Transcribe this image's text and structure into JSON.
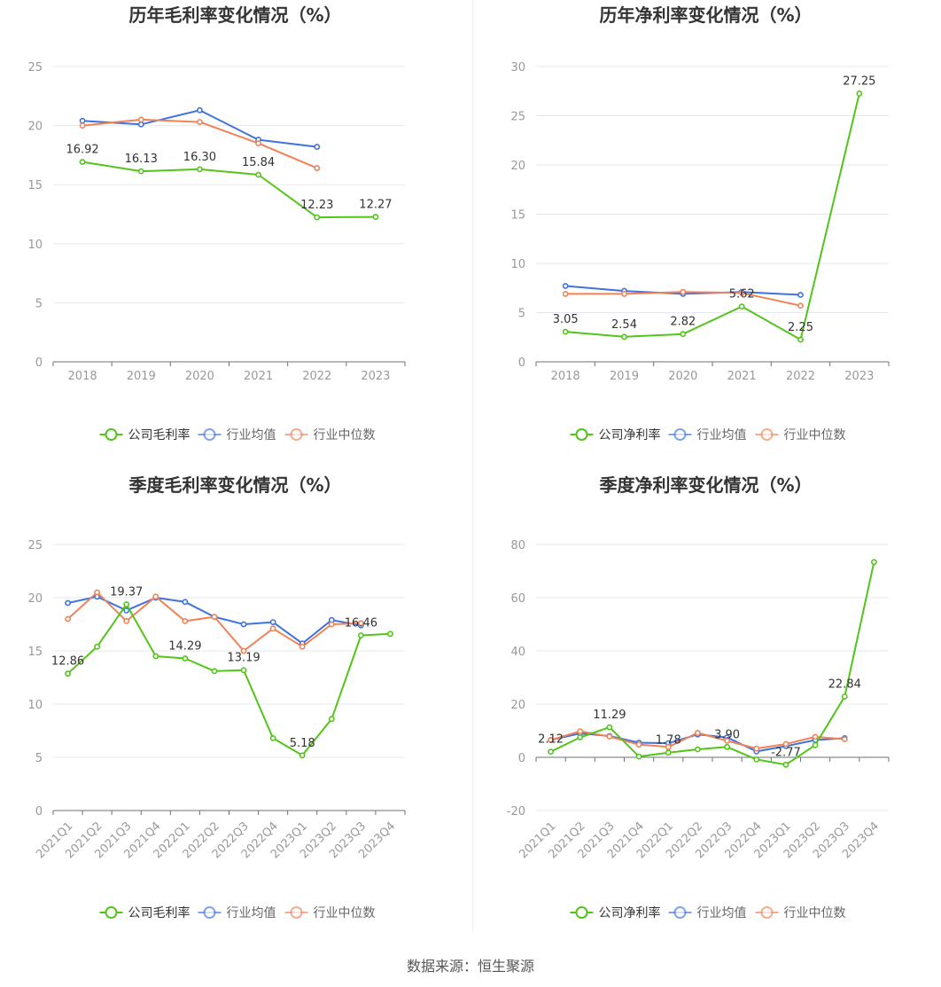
{
  "source_text": "数据来源：恒生聚源",
  "colors": {
    "company": "#52c41a",
    "industry_avg": "#3f72e0",
    "industry_median": "#f08257"
  },
  "chart_data": [
    {
      "type": "line",
      "title": "历年毛利率变化情况（%）",
      "categories": [
        "2018",
        "2019",
        "2020",
        "2021",
        "2022",
        "2023"
      ],
      "ylim": [
        0,
        25
      ],
      "yticks": [
        0,
        5,
        10,
        15,
        20,
        25
      ],
      "grid": true,
      "legend_position": "bottom",
      "series": [
        {
          "name": "公司毛利率",
          "role": "company",
          "values": [
            16.92,
            16.13,
            16.3,
            15.84,
            12.23,
            12.27
          ],
          "labels": [
            "16.92",
            "16.13",
            "16.30",
            "15.84",
            "12.23",
            "12.27"
          ]
        },
        {
          "name": "行业均值",
          "role": "industry_avg",
          "values": [
            20.4,
            20.1,
            21.3,
            18.8,
            18.2,
            null
          ]
        },
        {
          "name": "行业中位数",
          "role": "industry_median",
          "values": [
            20.0,
            20.5,
            20.3,
            18.5,
            16.4,
            null
          ]
        }
      ]
    },
    {
      "type": "line",
      "title": "历年净利率变化情况（%）",
      "categories": [
        "2018",
        "2019",
        "2020",
        "2021",
        "2022",
        "2023"
      ],
      "ylim": [
        0,
        30
      ],
      "yticks": [
        0,
        5,
        10,
        15,
        20,
        25,
        30
      ],
      "grid": true,
      "legend_position": "bottom",
      "series": [
        {
          "name": "公司净利率",
          "role": "company",
          "values": [
            3.05,
            2.54,
            2.82,
            5.62,
            2.25,
            27.25
          ],
          "labels": [
            "3.05",
            "2.54",
            "2.82",
            "5.62",
            "2.25",
            "27.25"
          ]
        },
        {
          "name": "行业均值",
          "role": "industry_avg",
          "values": [
            7.7,
            7.2,
            6.9,
            7.1,
            6.8,
            null
          ]
        },
        {
          "name": "行业中位数",
          "role": "industry_median",
          "values": [
            6.9,
            6.9,
            7.1,
            7.0,
            5.7,
            null
          ]
        }
      ]
    },
    {
      "type": "line",
      "title": "季度毛利率变化情况（%）",
      "categories": [
        "2021Q1",
        "2021Q2",
        "2021Q3",
        "2021Q4",
        "2022Q1",
        "2022Q2",
        "2022Q3",
        "2022Q4",
        "2023Q1",
        "2023Q2",
        "2023Q3",
        "2023Q4"
      ],
      "ylim": [
        0,
        25
      ],
      "yticks": [
        0,
        5,
        10,
        15,
        20,
        25
      ],
      "grid": true,
      "legend_position": "bottom",
      "series": [
        {
          "name": "公司毛利率",
          "role": "company",
          "values": [
            12.86,
            15.4,
            19.37,
            14.5,
            14.29,
            13.1,
            13.19,
            6.8,
            5.18,
            8.6,
            16.46,
            16.6
          ],
          "labels": [
            "12.86",
            null,
            "19.37",
            null,
            "14.29",
            null,
            "13.19",
            null,
            "5.18",
            null,
            "16.46",
            null
          ]
        },
        {
          "name": "行业均值",
          "role": "industry_avg",
          "values": [
            19.5,
            20.1,
            18.8,
            20.0,
            19.6,
            18.2,
            17.5,
            17.7,
            15.7,
            17.9,
            17.4,
            null
          ]
        },
        {
          "name": "行业中位数",
          "role": "industry_median",
          "values": [
            18.0,
            20.5,
            17.8,
            20.1,
            17.8,
            18.2,
            15.0,
            17.1,
            15.4,
            17.5,
            17.6,
            null
          ]
        }
      ]
    },
    {
      "type": "line",
      "title": "季度净利率变化情况（%）",
      "categories": [
        "2021Q1",
        "2021Q2",
        "2021Q3",
        "2021Q4",
        "2022Q1",
        "2022Q2",
        "2022Q3",
        "2022Q4",
        "2023Q1",
        "2023Q2",
        "2023Q3",
        "2023Q4"
      ],
      "ylim": [
        -20,
        80
      ],
      "yticks": [
        -20,
        0,
        20,
        40,
        60,
        80
      ],
      "grid": true,
      "legend_position": "bottom",
      "series": [
        {
          "name": "公司净利率",
          "role": "company",
          "values": [
            2.12,
            7.5,
            11.29,
            0.3,
            1.78,
            3.0,
            3.9,
            -0.8,
            -2.77,
            4.6,
            22.84,
            73.4
          ],
          "labels": [
            "2.12",
            null,
            "11.29",
            null,
            "1.78",
            null,
            "3.90",
            null,
            "-2.77",
            null,
            "22.84",
            null
          ]
        },
        {
          "name": "行业均值",
          "role": "industry_avg",
          "values": [
            6.5,
            9.0,
            8.0,
            5.5,
            5.3,
            8.6,
            7.5,
            2.2,
            4.2,
            6.5,
            7.2,
            null
          ]
        },
        {
          "name": "行业中位数",
          "role": "industry_median",
          "values": [
            6.5,
            9.8,
            7.8,
            4.8,
            3.9,
            9.2,
            6.2,
            3.3,
            5.0,
            7.7,
            6.8,
            null
          ]
        }
      ]
    }
  ]
}
